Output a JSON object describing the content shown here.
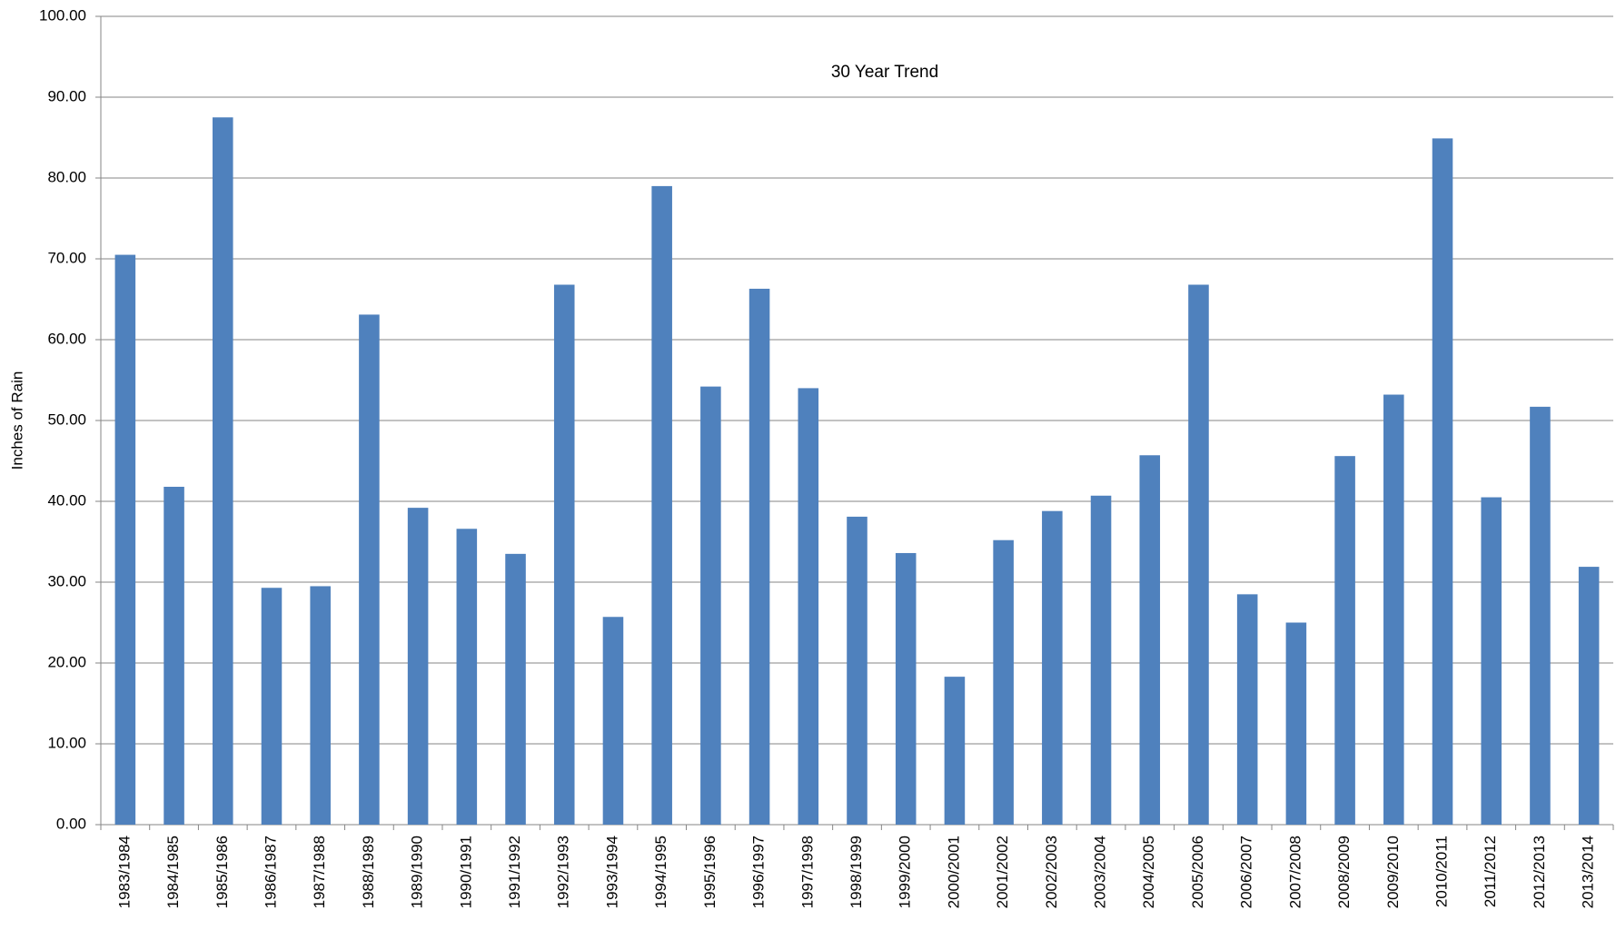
{
  "chart_data": {
    "type": "bar",
    "title": "30 Year Trend",
    "y_label": "Inches of Rain",
    "categories": [
      "1983/1984",
      "1984/1985",
      "1985/1986",
      "1986/1987",
      "1987/1988",
      "1988/1989",
      "1989/1990",
      "1990/1991",
      "1991/1992",
      "1992/1993",
      "1993/1994",
      "1994/1995",
      "1995/1996",
      "1996/1997",
      "1997/1998",
      "1998/1999",
      "1999/2000",
      "2000/2001",
      "2001/2002",
      "2002/2003",
      "2003/2004",
      "2004/2005",
      "2005/2006",
      "2006/2007",
      "2007/2008",
      "2008/2009",
      "2009/2010",
      "2010/2011",
      "2011/2012",
      "2012/2013",
      "2013/2014"
    ],
    "values": [
      70.5,
      41.8,
      87.5,
      29.3,
      29.5,
      63.1,
      39.2,
      36.6,
      33.5,
      66.8,
      25.7,
      79.0,
      54.2,
      66.3,
      54.0,
      38.1,
      33.6,
      18.3,
      35.2,
      38.8,
      40.7,
      45.7,
      66.8,
      28.5,
      25.0,
      45.6,
      53.2,
      84.9,
      40.5,
      51.7,
      31.9
    ],
    "color": "#4f81bd",
    "ylim": [
      0,
      100
    ],
    "yticks": [
      {
        "value": 0,
        "label": "0.00"
      },
      {
        "value": 10,
        "label": "10.00"
      },
      {
        "value": 20,
        "label": "20.00"
      },
      {
        "value": 30,
        "label": "30.00"
      },
      {
        "value": 40,
        "label": "40.00"
      },
      {
        "value": 50,
        "label": "50.00"
      },
      {
        "value": 60,
        "label": "60.00"
      },
      {
        "value": 70,
        "label": "70.00"
      },
      {
        "value": 80,
        "label": "80.00"
      },
      {
        "value": 90,
        "label": "90.00"
      },
      {
        "value": 100,
        "label": "100.00"
      }
    ],
    "grid": true
  }
}
